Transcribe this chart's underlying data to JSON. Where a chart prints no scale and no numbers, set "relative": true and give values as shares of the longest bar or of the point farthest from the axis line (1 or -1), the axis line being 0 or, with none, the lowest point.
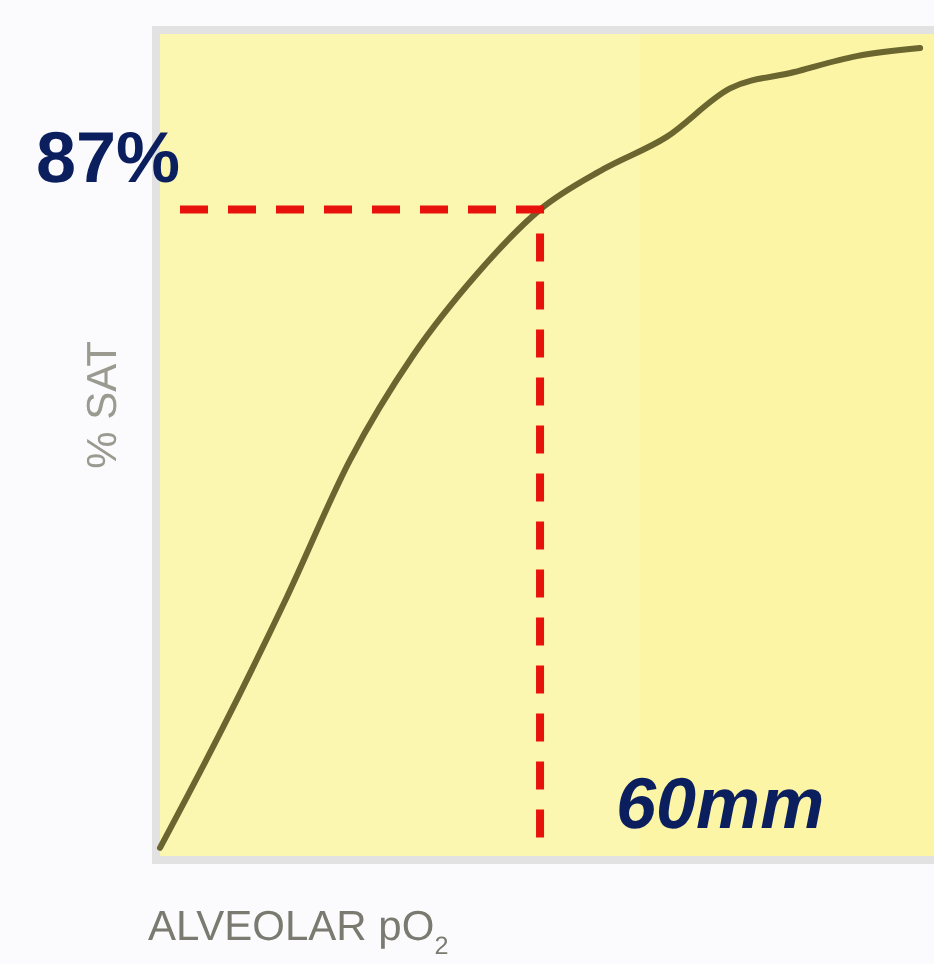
{
  "chart_data": {
    "type": "line",
    "xlabel": "ALVEOLAR pO$_{2}$",
    "ylabel": "% SAT",
    "relative": true,
    "categories": [
      null,
      null,
      null,
      null,
      null,
      null,
      null,
      null,
      null,
      null,
      null,
      null,
      null
    ],
    "series": [
      {
        "color": "#6b6530",
        "values": [
          0.01,
          0.16,
          0.32,
          0.49,
          0.62,
          0.72,
          0.8,
          0.85,
          0.89,
          0.95,
          0.97,
          0.99,
          1
        ]
      }
    ],
    "marker": "none",
    "line_style": "solid",
    "ref_lines": [
      {
        "axis": "y",
        "value": 0.8,
        "color": "#e8120c",
        "line_style": "dashed"
      }
    ],
    "annotations": [
      "87%",
      "60mm"
    ]
  }
}
